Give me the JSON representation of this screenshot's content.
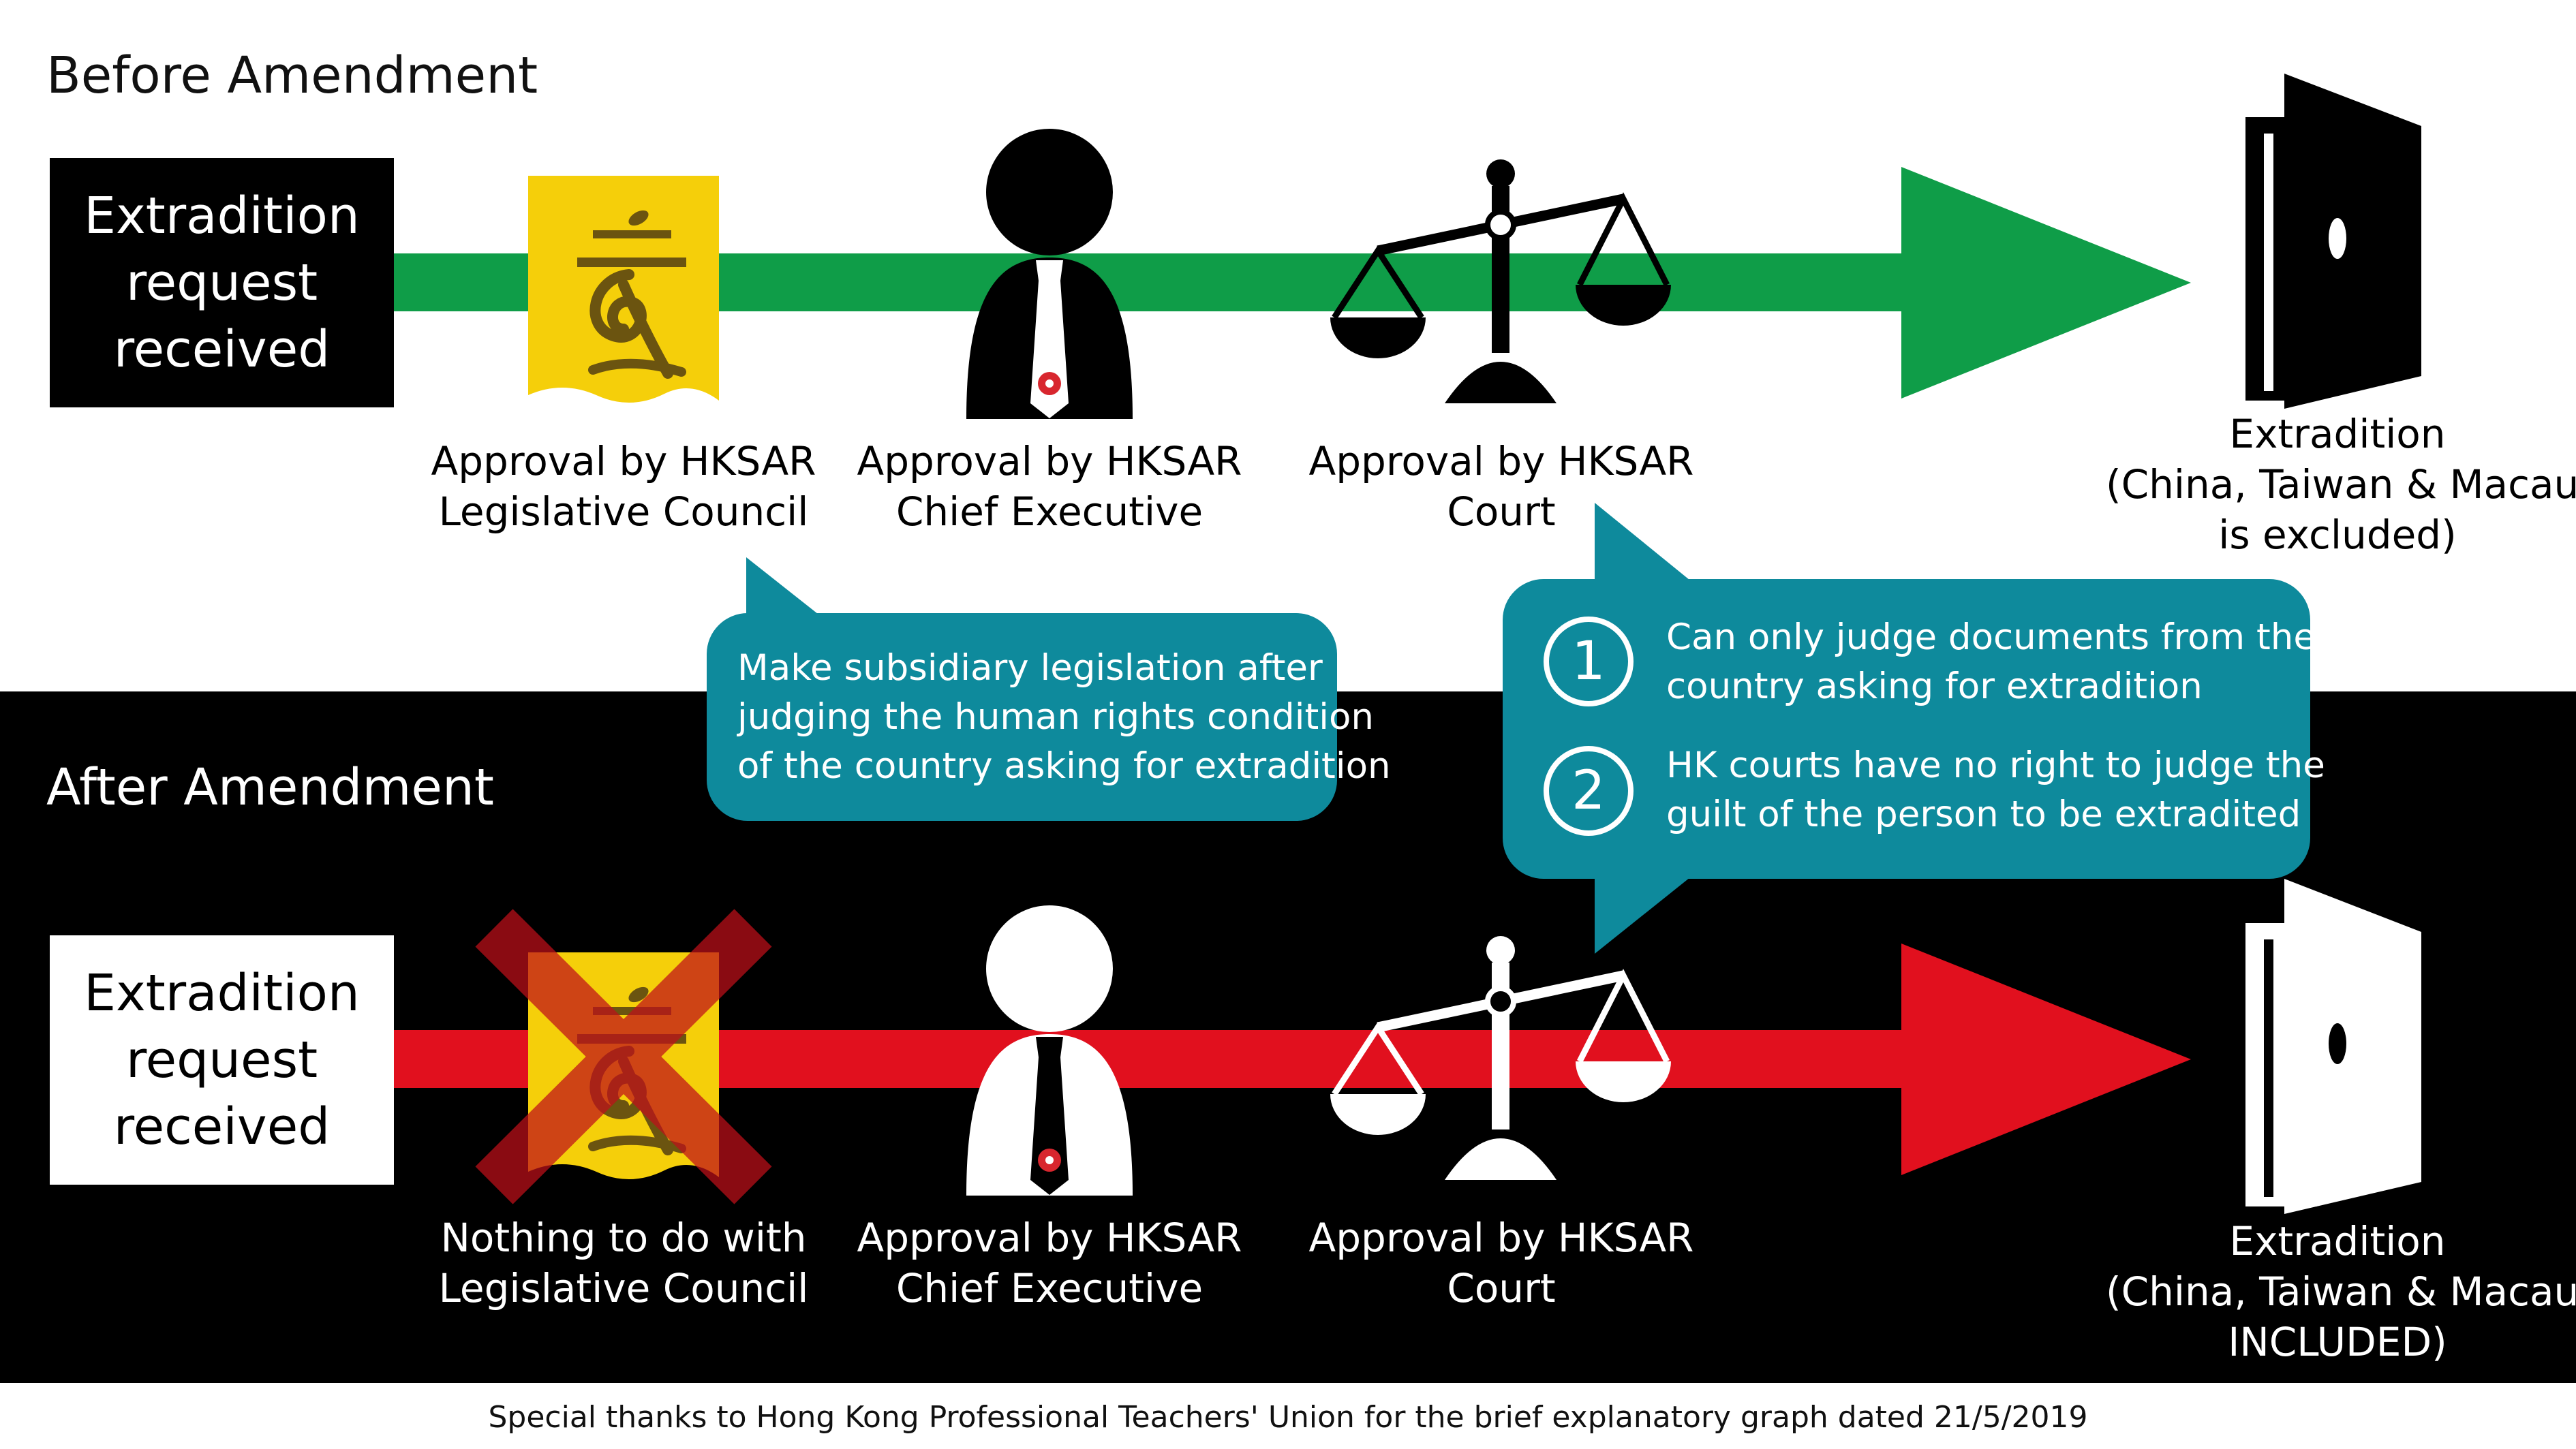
{
  "before": {
    "title": "Before Amendment",
    "request_lines": [
      "Extradition",
      "request",
      "received"
    ],
    "legco_lines": [
      "Approval by HKSAR",
      "Legislative Council"
    ],
    "ce_lines": [
      "Approval by HKSAR",
      "Chief Executive"
    ],
    "court_lines": [
      "Approval by HKSAR",
      "Court"
    ],
    "destination_lines": [
      "Extradition",
      "(China, Taiwan & Macau",
      "is excluded)"
    ],
    "arrow_color": "#0f9d48"
  },
  "after": {
    "title": "After Amendment",
    "request_lines": [
      "Extradition",
      "request",
      "received"
    ],
    "legco_lines": [
      "Nothing to do with",
      "Legislative Council"
    ],
    "ce_lines": [
      "Approval by HKSAR",
      "Chief Executive"
    ],
    "court_lines": [
      "Approval by HKSAR",
      "Court"
    ],
    "destination_lines": [
      "Extradition",
      "(China, Taiwan & Macau",
      "INCLUDED)"
    ],
    "arrow_color": "#e1101e"
  },
  "legco_bubble": {
    "lines": [
      "Make subsidiary legislation after",
      "judging the human rights condition",
      "of the country asking for extradition"
    ]
  },
  "court_bubble": {
    "items": [
      {
        "number": "1",
        "lines": [
          "Can only judge documents from the",
          "country asking for extradition"
        ]
      },
      {
        "number": "2",
        "lines": [
          "HK courts have no right to judge the",
          "guilt of the person to be extradited"
        ]
      }
    ]
  },
  "footer": "Special thanks to Hong Kong Professional Teachers' Union for the brief explanatory graph dated 21/5/2019",
  "colors": {
    "teal": "#0e8a9c",
    "legco_yellow": "#f5cf0a",
    "legco_gold": "#b8900a",
    "cross_red": "#a61c1c",
    "emblem_red": "#d8262e"
  },
  "icons": [
    "legco-emblem-icon",
    "chief-executive-icon",
    "scales-of-justice-icon",
    "open-door-icon",
    "cross-out-icon"
  ]
}
